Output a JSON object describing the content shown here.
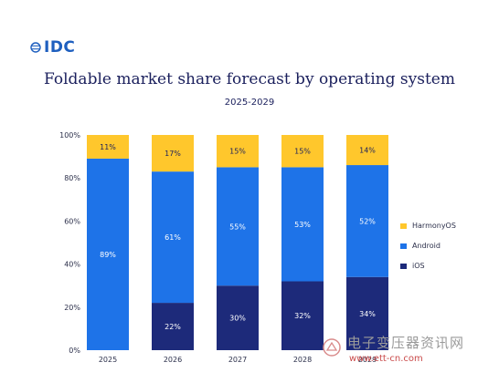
{
  "logo_text": "IDC",
  "chart_data": {
    "type": "bar",
    "stacked": true,
    "title": "Foldable market share forecast by operating system",
    "subtitle": "2025-2029",
    "categories": [
      "2025",
      "2026",
      "2027",
      "2028",
      "2029"
    ],
    "series": [
      {
        "name": "iOS",
        "values": [
          0,
          22,
          30,
          32,
          34
        ],
        "color": "#1d2a7a",
        "labels": [
          "",
          "22%",
          "30%",
          "32%",
          "34%"
        ]
      },
      {
        "name": "Android",
        "values": [
          89,
          61,
          55,
          53,
          52
        ],
        "color": "#1e73e8",
        "labels": [
          "89%",
          "61%",
          "55%",
          "53%",
          "52%"
        ]
      },
      {
        "name": "HarmonyOS",
        "values": [
          11,
          17,
          15,
          15,
          14
        ],
        "color": "#ffc72c",
        "labels": [
          "11%",
          "17%",
          "15%",
          "15%",
          "14%"
        ]
      }
    ],
    "yticks": [
      "0%",
      "20%",
      "40%",
      "60%",
      "80%",
      "100%"
    ],
    "ylim": [
      0,
      100
    ],
    "legend": [
      "HarmonyOS",
      "Android",
      "iOS"
    ],
    "legend_position": "right",
    "grid": false
  },
  "watermark": {
    "text": "电子变压器资讯网",
    "url": "www.ett-cn.com"
  }
}
